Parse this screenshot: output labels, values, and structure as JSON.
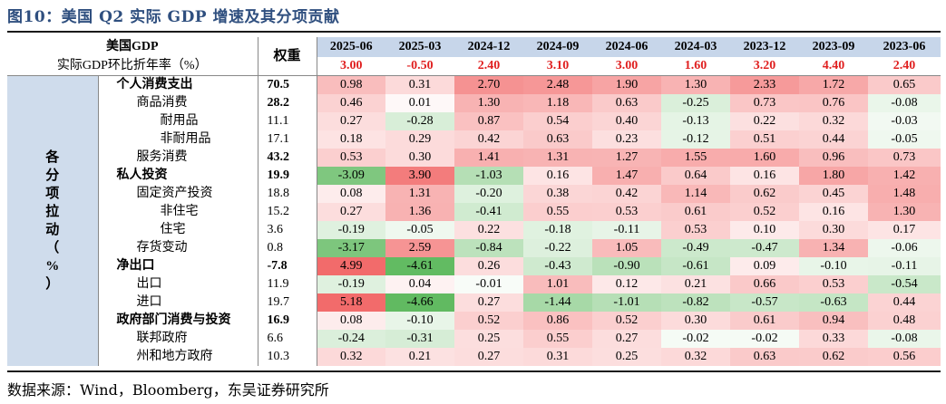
{
  "title": "图10：美国 Q2 实际 GDP 增速及其分项贡献",
  "source": "数据来源：Wind，Bloomberg，东吴证券研究所",
  "header": {
    "label_line1": "美国GDP",
    "label_line2": "实际GDP环比折年率（%）",
    "weight_label": "权重",
    "periods": [
      "2025-06",
      "2025-03",
      "2024-12",
      "2024-09",
      "2024-06",
      "2024-03",
      "2023-12",
      "2023-09",
      "2023-06"
    ],
    "gdp_values": [
      "3.00",
      "-0.50",
      "2.40",
      "3.10",
      "3.00",
      "1.60",
      "3.20",
      "4.40",
      "2.40"
    ]
  },
  "side_label": [
    "各",
    "分",
    "项",
    "拉",
    "动",
    "（",
    "%",
    "）"
  ],
  "rows": [
    {
      "name": "个人消费支出",
      "level": 1,
      "weight": "70.5",
      "values": [
        "0.98",
        "0.31",
        "2.70",
        "2.48",
        "1.90",
        "1.30",
        "2.33",
        "1.72",
        "0.65"
      ]
    },
    {
      "name": "商品消费",
      "level": 2,
      "weight": "28.2",
      "weight_bold": true,
      "values": [
        "0.46",
        "0.01",
        "1.30",
        "1.18",
        "0.63",
        "-0.25",
        "0.73",
        "0.76",
        "-0.08"
      ]
    },
    {
      "name": "耐用品",
      "level": 3,
      "weight": "11.1",
      "values": [
        "0.27",
        "-0.28",
        "0.87",
        "0.54",
        "0.40",
        "-0.13",
        "0.22",
        "0.32",
        "-0.03"
      ]
    },
    {
      "name": "非耐用品",
      "level": 3,
      "weight": "17.1",
      "values": [
        "0.18",
        "0.29",
        "0.42",
        "0.63",
        "0.23",
        "-0.12",
        "0.51",
        "0.44",
        "-0.05"
      ]
    },
    {
      "name": "服务消费",
      "level": 2,
      "weight": "43.2",
      "weight_bold": true,
      "values": [
        "0.53",
        "0.30",
        "1.41",
        "1.31",
        "1.27",
        "1.55",
        "1.60",
        "0.96",
        "0.73"
      ]
    },
    {
      "name": "私人投资",
      "level": 1,
      "weight": "19.9",
      "values": [
        "-3.09",
        "3.90",
        "-1.03",
        "0.16",
        "1.47",
        "0.64",
        "0.16",
        "1.80",
        "1.42"
      ]
    },
    {
      "name": "固定资产投资",
      "level": 2,
      "weight": "18.8",
      "values": [
        "0.08",
        "1.31",
        "-0.20",
        "0.38",
        "0.42",
        "1.14",
        "0.62",
        "0.45",
        "1.48"
      ]
    },
    {
      "name": "非住宅",
      "level": 3,
      "weight": "15.2",
      "values": [
        "0.27",
        "1.36",
        "-0.41",
        "0.55",
        "0.53",
        "0.61",
        "0.52",
        "0.16",
        "1.30"
      ]
    },
    {
      "name": "住宅",
      "level": 3,
      "weight": "3.6",
      "values": [
        "-0.19",
        "-0.05",
        "0.22",
        "-0.18",
        "-0.11",
        "0.53",
        "0.10",
        "0.30",
        "0.17"
      ]
    },
    {
      "name": "存货变动",
      "level": 2,
      "weight": "0.8",
      "values": [
        "-3.17",
        "2.59",
        "-0.84",
        "-0.22",
        "1.05",
        "-0.49",
        "-0.47",
        "1.34",
        "-0.06"
      ]
    },
    {
      "name": "净出口",
      "level": 1,
      "weight": "-7.8",
      "values": [
        "4.99",
        "-4.61",
        "0.26",
        "-0.43",
        "-0.90",
        "-0.61",
        "0.09",
        "-0.10",
        "-0.11"
      ]
    },
    {
      "name": "出口",
      "level": 2,
      "weight": "11.9",
      "values": [
        "-0.19",
        "0.04",
        "-0.01",
        "1.01",
        "0.12",
        "0.21",
        "0.66",
        "0.53",
        "-0.54"
      ]
    },
    {
      "name": "进口",
      "level": 2,
      "weight": "19.7",
      "values": [
        "5.18",
        "-4.66",
        "0.27",
        "-1.44",
        "-1.01",
        "-0.82",
        "-0.57",
        "-0.63",
        "0.44"
      ]
    },
    {
      "name": "政府部门消费与投资",
      "level": 1,
      "weight": "16.9",
      "values": [
        "0.08",
        "-0.10",
        "0.52",
        "0.86",
        "0.52",
        "0.30",
        "0.61",
        "0.94",
        "0.48"
      ]
    },
    {
      "name": "联邦政府",
      "level": 2,
      "weight": "6.6",
      "values": [
        "-0.24",
        "-0.31",
        "0.25",
        "0.55",
        "0.27",
        "-0.02",
        "-0.02",
        "0.33",
        "-0.08"
      ]
    },
    {
      "name": "州和地方政府",
      "level": 2,
      "weight": "10.3",
      "values": [
        "0.32",
        "0.21",
        "0.27",
        "0.31",
        "0.25",
        "0.32",
        "0.63",
        "0.62",
        "0.56"
      ]
    }
  ],
  "colors": {
    "positive_max": "#f26b6b",
    "negative_max": "#5cb85c",
    "neutral": "#ffffff",
    "gdp_red": "#e02020",
    "date_header_bg": "#c7d6ea",
    "side_bg": "#cfdcec",
    "title_blue": "#2f4f7f"
  }
}
